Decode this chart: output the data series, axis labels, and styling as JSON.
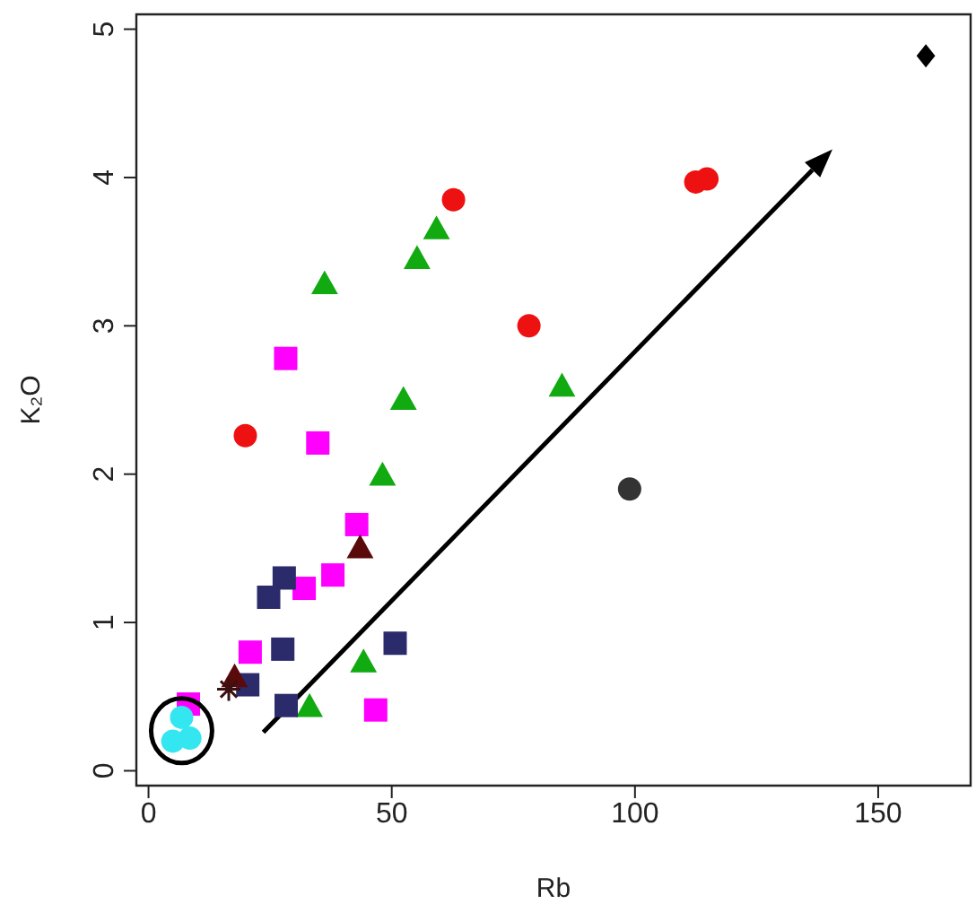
{
  "chart_data": {
    "type": "scatter",
    "xlabel": "Rb",
    "ylabel": "K₂O",
    "xlim": [
      -2.5,
      169
    ],
    "ylim": [
      -0.1,
      5.1
    ],
    "xticks": [
      0,
      50,
      100,
      150
    ],
    "yticks": [
      0,
      1,
      2,
      3,
      4,
      5
    ],
    "grid": false,
    "legend": false,
    "series": [
      {
        "type": "scatter",
        "marker": "circle",
        "color": "#ee1111",
        "x": [
          19.9,
          62.7,
          78.2,
          112.5,
          114.8
        ],
        "values": [
          2.26,
          3.85,
          3.0,
          3.97,
          3.99
        ]
      },
      {
        "type": "scatter",
        "marker": "triangle",
        "color": "#11aa11",
        "x": [
          36.2,
          55.2,
          59.2,
          52.4,
          48.1,
          85.0,
          44.2,
          33.1
        ],
        "values": [
          3.28,
          3.45,
          3.65,
          2.5,
          1.99,
          2.59,
          0.73,
          0.43
        ]
      },
      {
        "type": "scatter",
        "marker": "square",
        "color": "#ff00ff",
        "x": [
          28.2,
          34.8,
          42.8,
          37.9,
          32.0,
          20.9,
          46.7,
          8.2
        ],
        "values": [
          2.78,
          2.21,
          1.66,
          1.32,
          1.23,
          0.8,
          0.41,
          0.45
        ]
      },
      {
        "type": "scatter",
        "marker": "square",
        "color": "#2b2b6b",
        "x": [
          27.9,
          24.7,
          27.6,
          20.4,
          28.3,
          50.7
        ],
        "values": [
          1.3,
          1.17,
          0.82,
          0.58,
          0.44,
          0.86
        ]
      },
      {
        "type": "scatter",
        "marker": "triangle",
        "color": "#5a0a0a",
        "x": [
          43.5,
          17.7
        ],
        "values": [
          1.5,
          0.63
        ]
      },
      {
        "type": "scatter",
        "marker": "cross",
        "color": "#3a1010",
        "x": [
          16.5
        ],
        "values": [
          0.55
        ]
      },
      {
        "type": "scatter",
        "marker": "circle",
        "color": "#33e6f0",
        "x": [
          5.0,
          8.5,
          6.8
        ],
        "values": [
          0.2,
          0.22,
          0.36
        ]
      },
      {
        "type": "scatter",
        "marker": "diamond",
        "color": "#000000",
        "x": [
          159.8
        ],
        "values": [
          4.82
        ]
      },
      {
        "type": "scatter",
        "marker": "circle",
        "color": "#333333",
        "x": [
          98.9
        ],
        "values": [
          1.9
        ]
      }
    ]
  }
}
